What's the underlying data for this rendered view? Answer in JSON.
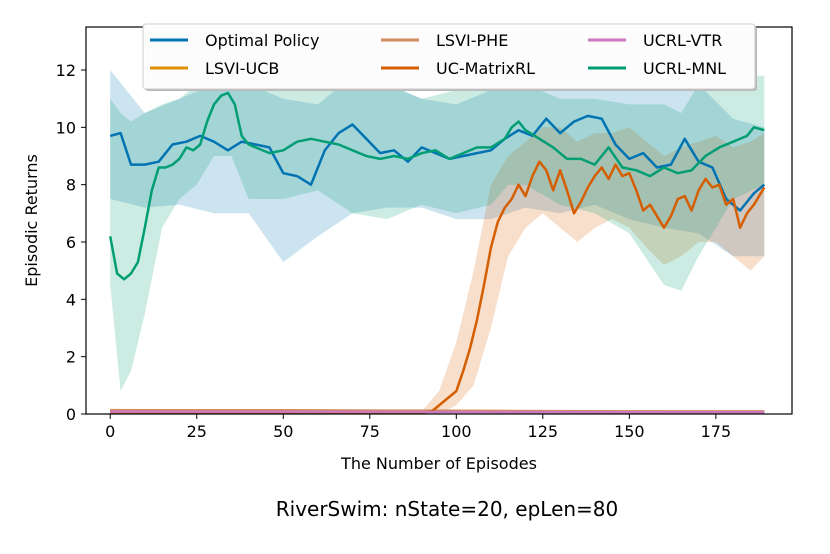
{
  "chart_data": {
    "type": "line",
    "title": "",
    "caption": "RiverSwim: nState=20, epLen=80",
    "xlabel": "The Number of Episodes",
    "ylabel": "Episodic Returns",
    "xlim": [
      -7,
      197
    ],
    "ylim": [
      0,
      13.5
    ],
    "xticks": [
      0,
      25,
      50,
      75,
      100,
      125,
      150,
      175
    ],
    "yticks": [
      0,
      2,
      4,
      6,
      8,
      10,
      12
    ],
    "grid": false,
    "legend_position": "top",
    "series": [
      {
        "name": "Optimal Policy",
        "color": "#0173b2",
        "points": [
          [
            0,
            9.7
          ],
          [
            3,
            9.8
          ],
          [
            6,
            8.7
          ],
          [
            10,
            8.7
          ],
          [
            14,
            8.8
          ],
          [
            18,
            9.4
          ],
          [
            22,
            9.5
          ],
          [
            26,
            9.7
          ],
          [
            30,
            9.5
          ],
          [
            34,
            9.2
          ],
          [
            38,
            9.5
          ],
          [
            42,
            9.4
          ],
          [
            46,
            9.3
          ],
          [
            50,
            8.4
          ],
          [
            54,
            8.3
          ],
          [
            58,
            8.0
          ],
          [
            62,
            9.2
          ],
          [
            66,
            9.8
          ],
          [
            70,
            10.1
          ],
          [
            74,
            9.6
          ],
          [
            78,
            9.1
          ],
          [
            82,
            9.2
          ],
          [
            86,
            8.8
          ],
          [
            90,
            9.3
          ],
          [
            94,
            9.1
          ],
          [
            98,
            8.9
          ],
          [
            102,
            9.0
          ],
          [
            106,
            9.1
          ],
          [
            110,
            9.2
          ],
          [
            114,
            9.6
          ],
          [
            118,
            9.9
          ],
          [
            122,
            9.7
          ],
          [
            126,
            10.3
          ],
          [
            130,
            9.8
          ],
          [
            134,
            10.2
          ],
          [
            138,
            10.4
          ],
          [
            142,
            10.3
          ],
          [
            146,
            9.4
          ],
          [
            150,
            8.9
          ],
          [
            154,
            9.1
          ],
          [
            158,
            8.6
          ],
          [
            162,
            8.7
          ],
          [
            166,
            9.6
          ],
          [
            170,
            8.8
          ],
          [
            174,
            8.6
          ],
          [
            178,
            7.5
          ],
          [
            182,
            7.1
          ],
          [
            186,
            7.7
          ],
          [
            189,
            8.0
          ]
        ],
        "band": [
          [
            0,
            7.5,
            12.0
          ],
          [
            10,
            7.2,
            10.5
          ],
          [
            20,
            7.3,
            11.0
          ],
          [
            30,
            7.0,
            11.5
          ],
          [
            40,
            7.0,
            11.5
          ],
          [
            50,
            5.3,
            11.0
          ],
          [
            60,
            6.2,
            10.8
          ],
          [
            70,
            7.0,
            11.8
          ],
          [
            80,
            7.2,
            11.5
          ],
          [
            90,
            7.2,
            11.0
          ],
          [
            100,
            6.8,
            10.8
          ],
          [
            110,
            6.8,
            11.3
          ],
          [
            120,
            7.2,
            12.0
          ],
          [
            130,
            7.0,
            12.0
          ],
          [
            140,
            7.3,
            12.0
          ],
          [
            150,
            6.8,
            11.5
          ],
          [
            160,
            6.5,
            11.3
          ],
          [
            170,
            6.3,
            11.5
          ],
          [
            180,
            5.5,
            10.3
          ],
          [
            189,
            5.5,
            10.0
          ]
        ]
      },
      {
        "name": "LSVI-UCB",
        "color": "#de8f05",
        "points": [
          [
            0,
            0.12
          ],
          [
            50,
            0.12
          ],
          [
            100,
            0.1
          ],
          [
            150,
            0.08
          ],
          [
            189,
            0.08
          ]
        ],
        "band": [
          [
            0,
            0.06,
            0.18
          ],
          [
            189,
            0.04,
            0.12
          ]
        ]
      },
      {
        "name": "LSVI-PHE",
        "color": "#d28b5e",
        "points": [
          [
            0,
            0.13
          ],
          [
            50,
            0.13
          ],
          [
            100,
            0.11
          ],
          [
            150,
            0.09
          ],
          [
            189,
            0.09
          ]
        ],
        "band": [
          [
            0,
            0.08,
            0.18
          ],
          [
            189,
            0.06,
            0.12
          ]
        ]
      },
      {
        "name": "UC-MatrixRL",
        "color": "#d55e00",
        "points": [
          [
            0,
            0.05
          ],
          [
            90,
            0.05
          ],
          [
            93,
            0.1
          ],
          [
            96,
            0.4
          ],
          [
            100,
            0.8
          ],
          [
            102,
            1.5
          ],
          [
            104,
            2.3
          ],
          [
            106,
            3.3
          ],
          [
            108,
            4.5
          ],
          [
            110,
            5.8
          ],
          [
            112,
            6.7
          ],
          [
            114,
            7.2
          ],
          [
            116,
            7.5
          ],
          [
            118,
            8.0
          ],
          [
            120,
            7.6
          ],
          [
            122,
            8.3
          ],
          [
            124,
            8.8
          ],
          [
            126,
            8.5
          ],
          [
            128,
            7.8
          ],
          [
            130,
            8.5
          ],
          [
            132,
            7.8
          ],
          [
            134,
            7.0
          ],
          [
            136,
            7.4
          ],
          [
            138,
            7.9
          ],
          [
            140,
            8.3
          ],
          [
            142,
            8.6
          ],
          [
            144,
            8.2
          ],
          [
            146,
            8.7
          ],
          [
            148,
            8.3
          ],
          [
            150,
            8.4
          ],
          [
            152,
            7.8
          ],
          [
            154,
            7.1
          ],
          [
            156,
            7.3
          ],
          [
            158,
            6.9
          ],
          [
            160,
            6.5
          ],
          [
            162,
            6.9
          ],
          [
            164,
            7.5
          ],
          [
            166,
            7.6
          ],
          [
            168,
            7.1
          ],
          [
            170,
            7.8
          ],
          [
            172,
            8.2
          ],
          [
            174,
            7.9
          ],
          [
            176,
            8.0
          ],
          [
            178,
            7.3
          ],
          [
            180,
            7.5
          ],
          [
            182,
            6.5
          ],
          [
            184,
            7.0
          ],
          [
            186,
            7.3
          ],
          [
            189,
            7.9
          ]
        ],
        "band": [
          [
            90,
            0.0,
            0.1
          ],
          [
            95,
            0.0,
            0.8
          ],
          [
            100,
            0.3,
            2.5
          ],
          [
            105,
            1.0,
            5.0
          ],
          [
            110,
            3.0,
            8.0
          ],
          [
            115,
            5.5,
            9.0
          ],
          [
            120,
            6.5,
            9.5
          ],
          [
            125,
            7.0,
            10.0
          ],
          [
            130,
            6.5,
            10.0
          ],
          [
            135,
            6.0,
            9.5
          ],
          [
            140,
            6.5,
            9.8
          ],
          [
            145,
            6.8,
            9.8
          ],
          [
            150,
            6.5,
            10.0
          ],
          [
            155,
            5.8,
            9.5
          ],
          [
            160,
            5.2,
            9.0
          ],
          [
            165,
            5.5,
            9.3
          ],
          [
            170,
            6.0,
            9.5
          ],
          [
            175,
            6.0,
            9.7
          ],
          [
            180,
            5.5,
            9.3
          ],
          [
            185,
            5.0,
            9.5
          ],
          [
            189,
            5.5,
            9.8
          ]
        ]
      },
      {
        "name": "UCRL-VTR",
        "color": "#cc78bc",
        "points": [
          [
            0,
            0.08
          ],
          [
            50,
            0.08
          ],
          [
            100,
            0.07
          ],
          [
            150,
            0.06
          ],
          [
            189,
            0.06
          ]
        ],
        "band": [
          [
            0,
            0.03,
            0.13
          ],
          [
            189,
            0.02,
            0.1
          ]
        ]
      },
      {
        "name": "UCRL-MNL",
        "color": "#029e73",
        "points": [
          [
            0,
            6.2
          ],
          [
            2,
            4.9
          ],
          [
            4,
            4.7
          ],
          [
            6,
            4.9
          ],
          [
            8,
            5.3
          ],
          [
            10,
            6.5
          ],
          [
            12,
            7.8
          ],
          [
            14,
            8.6
          ],
          [
            16,
            8.6
          ],
          [
            18,
            8.7
          ],
          [
            20,
            8.9
          ],
          [
            22,
            9.3
          ],
          [
            24,
            9.2
          ],
          [
            26,
            9.4
          ],
          [
            28,
            10.2
          ],
          [
            30,
            10.8
          ],
          [
            32,
            11.1
          ],
          [
            34,
            11.2
          ],
          [
            36,
            10.8
          ],
          [
            38,
            9.7
          ],
          [
            40,
            9.4
          ],
          [
            42,
            9.3
          ],
          [
            46,
            9.1
          ],
          [
            50,
            9.2
          ],
          [
            54,
            9.5
          ],
          [
            58,
            9.6
          ],
          [
            62,
            9.5
          ],
          [
            66,
            9.4
          ],
          [
            70,
            9.2
          ],
          [
            74,
            9.0
          ],
          [
            78,
            8.9
          ],
          [
            82,
            9.0
          ],
          [
            86,
            8.9
          ],
          [
            90,
            9.1
          ],
          [
            94,
            9.2
          ],
          [
            98,
            8.9
          ],
          [
            102,
            9.1
          ],
          [
            106,
            9.3
          ],
          [
            110,
            9.3
          ],
          [
            114,
            9.6
          ],
          [
            116,
            10.0
          ],
          [
            118,
            10.2
          ],
          [
            120,
            9.9
          ],
          [
            124,
            9.6
          ],
          [
            128,
            9.3
          ],
          [
            132,
            8.9
          ],
          [
            136,
            8.9
          ],
          [
            140,
            8.7
          ],
          [
            144,
            9.3
          ],
          [
            148,
            8.6
          ],
          [
            152,
            8.5
          ],
          [
            156,
            8.3
          ],
          [
            160,
            8.6
          ],
          [
            164,
            8.4
          ],
          [
            168,
            8.5
          ],
          [
            172,
            9.0
          ],
          [
            176,
            9.3
          ],
          [
            180,
            9.5
          ],
          [
            184,
            9.7
          ],
          [
            186,
            10.0
          ],
          [
            189,
            9.9
          ]
        ],
        "band": [
          [
            0,
            4.5,
            11.0
          ],
          [
            3,
            0.8,
            10.5
          ],
          [
            6,
            1.5,
            10.2
          ],
          [
            10,
            3.5,
            10.5
          ],
          [
            15,
            6.5,
            10.8
          ],
          [
            20,
            7.5,
            11.0
          ],
          [
            25,
            8.0,
            11.5
          ],
          [
            30,
            9.0,
            12.8
          ],
          [
            35,
            9.0,
            13.0
          ],
          [
            40,
            7.5,
            12.0
          ],
          [
            50,
            7.5,
            11.5
          ],
          [
            60,
            7.8,
            11.5
          ],
          [
            70,
            7.0,
            11.5
          ],
          [
            80,
            6.8,
            11.5
          ],
          [
            90,
            7.3,
            11.0
          ],
          [
            100,
            7.0,
            11.3
          ],
          [
            110,
            7.3,
            11.3
          ],
          [
            115,
            8.0,
            11.8
          ],
          [
            120,
            8.0,
            11.5
          ],
          [
            130,
            7.3,
            11.0
          ],
          [
            140,
            7.0,
            11.0
          ],
          [
            150,
            6.3,
            10.8
          ],
          [
            160,
            4.5,
            10.8
          ],
          [
            165,
            4.3,
            10.5
          ],
          [
            170,
            5.5,
            11.5
          ],
          [
            180,
            7.5,
            11.8
          ],
          [
            189,
            8.0,
            11.8
          ]
        ]
      }
    ]
  }
}
